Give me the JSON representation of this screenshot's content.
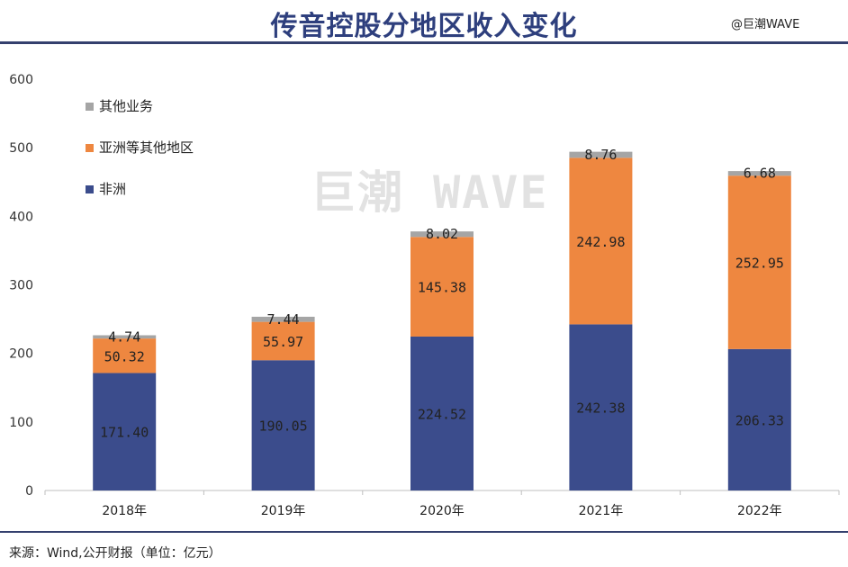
{
  "header": {
    "title": "传音控股分地区收入变化",
    "brand": "@巨潮WAVE"
  },
  "watermark": "巨潮 WAVE",
  "footer": {
    "source": "来源：Wind,公开财报（单位：亿元）"
  },
  "colors": {
    "africa": "#3b4c8c",
    "asia": "#ee8740",
    "other": "#a5a5a5",
    "accent": "#2e3f7d"
  },
  "chart_data": {
    "type": "bar",
    "stacked": true,
    "categories": [
      "2018年",
      "2019年",
      "2020年",
      "2021年",
      "2022年"
    ],
    "series": [
      {
        "name": "非洲",
        "values": [
          171.4,
          190.05,
          224.52,
          242.38,
          206.33
        ],
        "labels": [
          "171.40",
          "190.05",
          "224.52",
          "242.38",
          "206.33"
        ],
        "color": "#3b4c8c"
      },
      {
        "name": "亚洲等其他地区",
        "values": [
          50.32,
          55.97,
          145.38,
          242.98,
          252.95
        ],
        "labels": [
          "50.32",
          "55.97",
          "145.38",
          "242.98",
          "252.95"
        ],
        "color": "#ee8740"
      },
      {
        "name": "其他业务",
        "values": [
          4.74,
          7.44,
          8.02,
          8.76,
          6.68
        ],
        "labels": [
          "4.74",
          "7.44",
          "8.02",
          "8.76",
          "6.68"
        ],
        "color": "#a5a5a5"
      }
    ],
    "ylim": [
      0,
      600
    ],
    "yticks": [
      "0",
      "100",
      "200",
      "300",
      "400",
      "500",
      "600"
    ],
    "legend": "top-left",
    "grid": false,
    "xlabel": "",
    "ylabel": ""
  }
}
